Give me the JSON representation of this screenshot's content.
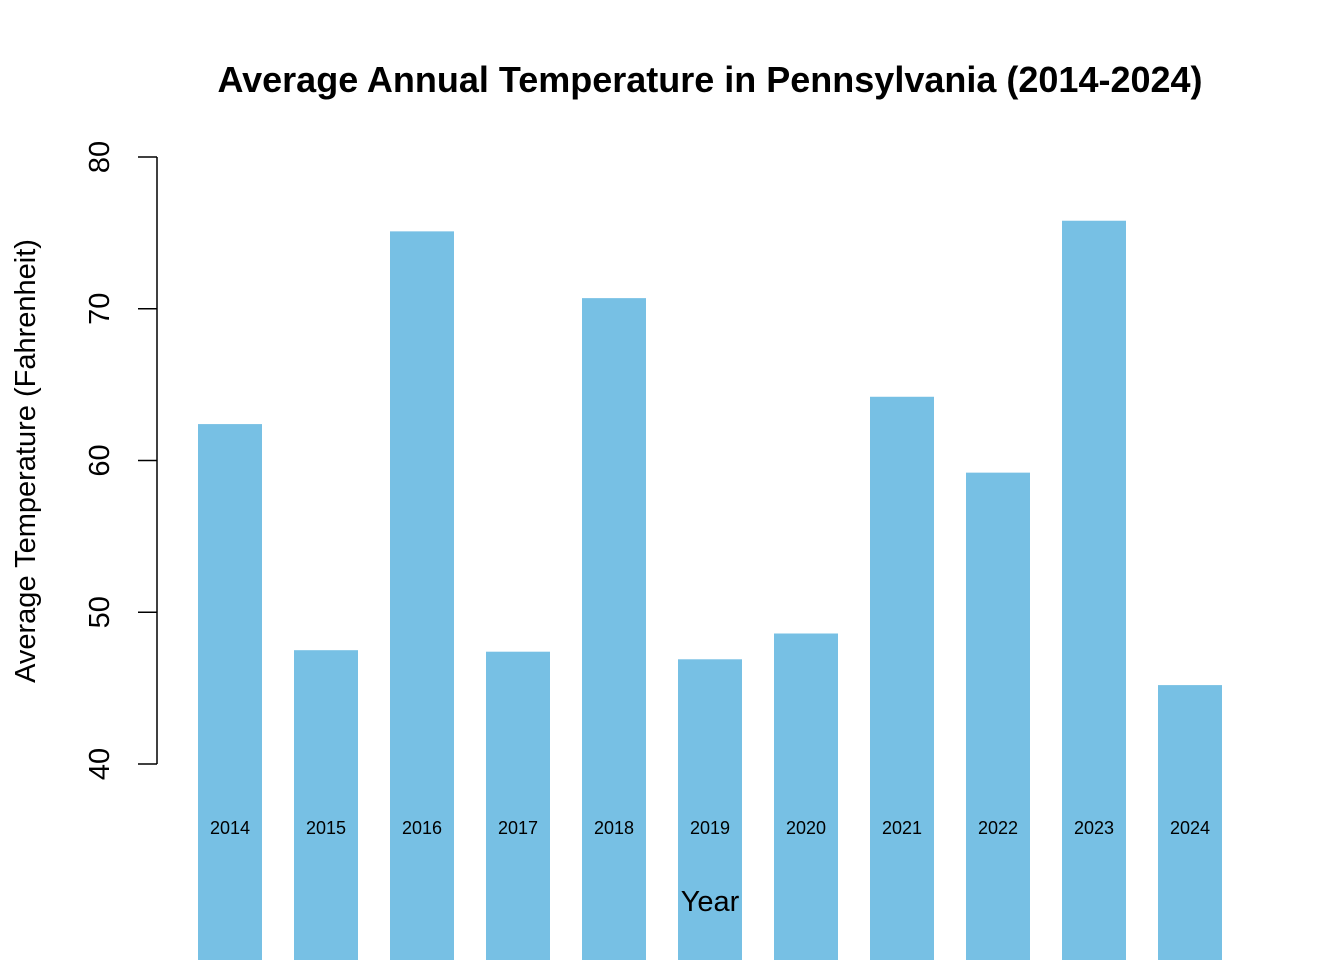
{
  "chart_data": {
    "type": "bar",
    "title": "Average Annual Temperature in Pennsylvania (2014-2024)",
    "xlabel": "Year",
    "ylabel": "Average Temperature (Fahrenheit)",
    "categories": [
      "2014",
      "2015",
      "2016",
      "2017",
      "2018",
      "2019",
      "2020",
      "2021",
      "2022",
      "2023",
      "2024"
    ],
    "values": [
      62.4,
      47.5,
      75.1,
      47.4,
      70.7,
      46.9,
      48.6,
      64.2,
      59.2,
      75.8,
      45.2
    ],
    "ylim": [
      40,
      80
    ],
    "yticks": [
      "40",
      "50",
      "60",
      "70",
      "80"
    ],
    "bar_color": "#77C0E4",
    "grid": false,
    "legend": "none"
  }
}
